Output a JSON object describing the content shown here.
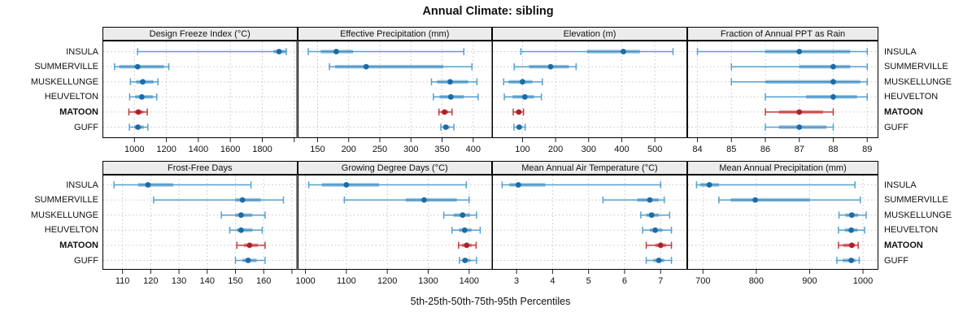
{
  "title": "Annual Climate: sibling",
  "footer": "5th-25th-50th-75th-95th Percentiles",
  "stations": [
    {
      "name": "INSULA",
      "highlight": false
    },
    {
      "name": "SUMMERVILLE",
      "highlight": false
    },
    {
      "name": "MUSKELLUNGE",
      "highlight": false
    },
    {
      "name": "HEUVELTON",
      "highlight": false
    },
    {
      "name": "MATOON",
      "highlight": true
    },
    {
      "name": "GUFF",
      "highlight": false
    }
  ],
  "colors": {
    "blue_dot": "#1a6ca8",
    "blue_line": "#54a1d1",
    "blue_band": "rgba(31,119,180,0.45)",
    "red_dot": "#b01f28",
    "red_line": "#c23b3f",
    "red_band": "rgba(190,30,40,0.45)",
    "grid": "#c6c6c6",
    "strip_bg": "#ececec",
    "border": "#000000",
    "text": "#111111"
  },
  "chart_data": {
    "type": "scatter",
    "subtype": "percentile-interval-dotplot",
    "title": "Annual Climate: sibling",
    "xlabel": "5th-25th-50th-75th-95th Percentiles",
    "legend_position": "none",
    "grid": "dotted",
    "percentiles": [
      5,
      25,
      50,
      75,
      95
    ],
    "panels": [
      {
        "title": "Design Freeze Index (°C)",
        "row": 0,
        "col": 0,
        "domain": [
          800,
          2019
        ],
        "ticks": [
          1000,
          1200,
          1400,
          1600,
          1800
        ],
        "unlabeled_ticks": [
          2000
        ],
        "series": [
          {
            "station": "INSULA",
            "p": [
              1020,
              1870,
              1905,
              1945,
              1950
            ]
          },
          {
            "station": "SUMMERVILLE",
            "p": [
              875,
              905,
              1020,
              1185,
              1215
            ]
          },
          {
            "station": "MUSKELLUNGE",
            "p": [
              975,
              1010,
              1052,
              1120,
              1147
            ]
          },
          {
            "station": "HEUVELTON",
            "p": [
              970,
              1005,
              1046,
              1115,
              1140
            ]
          },
          {
            "station": "MATOON",
            "p": [
              965,
              1000,
              1025,
              1056,
              1080
            ]
          },
          {
            "station": "GUFF",
            "p": [
              968,
              1000,
              1022,
              1058,
              1084
            ]
          }
        ]
      },
      {
        "title": "Effective Precipitation (mm)",
        "row": 0,
        "col": 1,
        "domain": [
          118,
          431
        ],
        "ticks": [
          150,
          200,
          250,
          300,
          350,
          400
        ],
        "unlabeled_ticks": [],
        "series": [
          {
            "station": "INSULA",
            "p": [
              135,
              155,
              180,
              207,
              385
            ]
          },
          {
            "station": "SUMMERVILLE",
            "p": [
              169,
              178,
              228,
              352,
              398
            ]
          },
          {
            "station": "MUSKELLUNGE",
            "p": [
              333,
              342,
              363,
              392,
              406
            ]
          },
          {
            "station": "HEUVELTON",
            "p": [
              336,
              346,
              364,
              385,
              408
            ]
          },
          {
            "station": "MATOON",
            "p": [
              345,
              349,
              354,
              360,
              366
            ]
          },
          {
            "station": "GUFF",
            "p": [
              348,
              352,
              356,
              362,
              369
            ]
          }
        ]
      },
      {
        "title": "Elevation (m)",
        "row": 0,
        "col": 2,
        "domain": [
          8,
          598
        ],
        "ticks": [
          100,
          200,
          300,
          400,
          500
        ],
        "unlabeled_ticks": [],
        "series": [
          {
            "station": "INSULA",
            "p": [
              95,
              295,
              405,
              455,
              555
            ]
          },
          {
            "station": "SUMMERVILLE",
            "p": [
              75,
              120,
              185,
              240,
              262
            ]
          },
          {
            "station": "MUSKELLUNGE",
            "p": [
              43,
              58,
              100,
              130,
              160
            ]
          },
          {
            "station": "HEUVELTON",
            "p": [
              45,
              70,
              107,
              135,
              157
            ]
          },
          {
            "station": "MATOON",
            "p": [
              72,
              80,
              89,
              96,
              103
            ]
          },
          {
            "station": "GUFF",
            "p": [
              74,
              82,
              90,
              98,
              108
            ]
          }
        ]
      },
      {
        "title": "Fraction of Annual PPT as Rain",
        "row": 0,
        "col": 3,
        "domain": [
          83.7,
          89.33
        ],
        "ticks": [
          84,
          85,
          86,
          87,
          88,
          89
        ],
        "unlabeled_ticks": [],
        "series": [
          {
            "station": "INSULA",
            "p": [
              84,
              86,
              87,
              88.5,
              89
            ]
          },
          {
            "station": "SUMMERVILLE",
            "p": [
              85,
              87,
              88,
              88.5,
              89
            ]
          },
          {
            "station": "MUSKELLUNGE",
            "p": [
              85,
              86,
              88,
              88.8,
              89
            ]
          },
          {
            "station": "HEUVELTON",
            "p": [
              86,
              87.2,
              88,
              88.7,
              89
            ]
          },
          {
            "station": "MATOON",
            "p": [
              86,
              86.4,
              87,
              87.7,
              88
            ]
          },
          {
            "station": "GUFF",
            "p": [
              86,
              86.4,
              87,
              87.8,
              88
            ]
          }
        ]
      },
      {
        "title": "Frost-Free Days",
        "row": 1,
        "col": 0,
        "domain": [
          102.9,
          171.9
        ],
        "ticks": [
          110,
          120,
          130,
          140,
          150,
          160
        ],
        "unlabeled_ticks": [
          170
        ],
        "series": [
          {
            "station": "INSULA",
            "p": [
              107,
              115.5,
              119,
              128,
              155.5
            ]
          },
          {
            "station": "SUMMERVILLE",
            "p": [
              121,
              150,
              152.5,
              159,
              167
            ]
          },
          {
            "station": "MUSKELLUNGE",
            "p": [
              145,
              150,
              152,
              156,
              160.5
            ]
          },
          {
            "station": "HEUVELTON",
            "p": [
              148,
              150.5,
              152,
              156,
              159.5
            ]
          },
          {
            "station": "MATOON",
            "p": [
              150.5,
              153,
              155,
              158,
              160.5
            ]
          },
          {
            "station": "GUFF",
            "p": [
              150,
              152.5,
              154.5,
              157.5,
              160.5
            ]
          }
        ]
      },
      {
        "title": "Growing Degree Days (°C)",
        "row": 1,
        "col": 1,
        "domain": [
          981,
          1457
        ],
        "ticks": [
          1000,
          1100,
          1200,
          1300,
          1400
        ],
        "unlabeled_ticks": [],
        "series": [
          {
            "station": "INSULA",
            "p": [
              1008,
              1040,
              1100,
              1180,
              1393
            ]
          },
          {
            "station": "SUMMERVILLE",
            "p": [
              1095,
              1245,
              1290,
              1370,
              1400
            ]
          },
          {
            "station": "MUSKELLUNGE",
            "p": [
              1338,
              1362,
              1384,
              1402,
              1418
            ]
          },
          {
            "station": "HEUVELTON",
            "p": [
              1358,
              1375,
              1389,
              1406,
              1427
            ]
          },
          {
            "station": "MATOON",
            "p": [
              1374,
              1383,
              1394,
              1406,
              1417
            ]
          },
          {
            "station": "GUFF",
            "p": [
              1376,
              1383,
              1390,
              1403,
              1418
            ]
          }
        ]
      },
      {
        "title": "Mean Annual Air Temperature (°C)",
        "row": 1,
        "col": 2,
        "domain": [
          2.32,
          7.74
        ],
        "ticks": [
          3,
          4,
          5,
          6,
          7
        ],
        "unlabeled_ticks": [],
        "series": [
          {
            "station": "INSULA",
            "p": [
              2.6,
              2.8,
              3.05,
              3.8,
              7.0
            ]
          },
          {
            "station": "SUMMERVILLE",
            "p": [
              5.4,
              6.35,
              6.7,
              6.95,
              7.1
            ]
          },
          {
            "station": "MUSKELLUNGE",
            "p": [
              6.45,
              6.6,
              6.75,
              6.95,
              7.25
            ]
          },
          {
            "station": "HEUVELTON",
            "p": [
              6.5,
              6.7,
              6.85,
              7.05,
              7.3
            ]
          },
          {
            "station": "MATOON",
            "p": [
              6.6,
              6.85,
              7.0,
              7.15,
              7.3
            ]
          },
          {
            "station": "GUFF",
            "p": [
              6.6,
              6.8,
              6.95,
              7.1,
              7.3
            ]
          }
        ]
      },
      {
        "title": "Mean Annual Precipitation (mm)",
        "row": 1,
        "col": 3,
        "domain": [
          670.6,
          1028.9
        ],
        "ticks": [
          700,
          800,
          900,
          1000
        ],
        "unlabeled_ticks": [],
        "series": [
          {
            "station": "INSULA",
            "p": [
              688,
              695,
              712,
              730,
              985
            ]
          },
          {
            "station": "SUMMERVILLE",
            "p": [
              730,
              752,
              798,
              900,
              995
            ]
          },
          {
            "station": "MUSKELLUNGE",
            "p": [
              955,
              967,
              979,
              991,
              1006
            ]
          },
          {
            "station": "HEUVELTON",
            "p": [
              954,
              966,
              978,
              990,
              1003
            ]
          },
          {
            "station": "MATOON",
            "p": [
              954,
              963,
              979,
              985,
              991
            ]
          },
          {
            "station": "GUFF",
            "p": [
              951,
              962,
              978,
              986,
              993
            ]
          }
        ]
      }
    ]
  }
}
